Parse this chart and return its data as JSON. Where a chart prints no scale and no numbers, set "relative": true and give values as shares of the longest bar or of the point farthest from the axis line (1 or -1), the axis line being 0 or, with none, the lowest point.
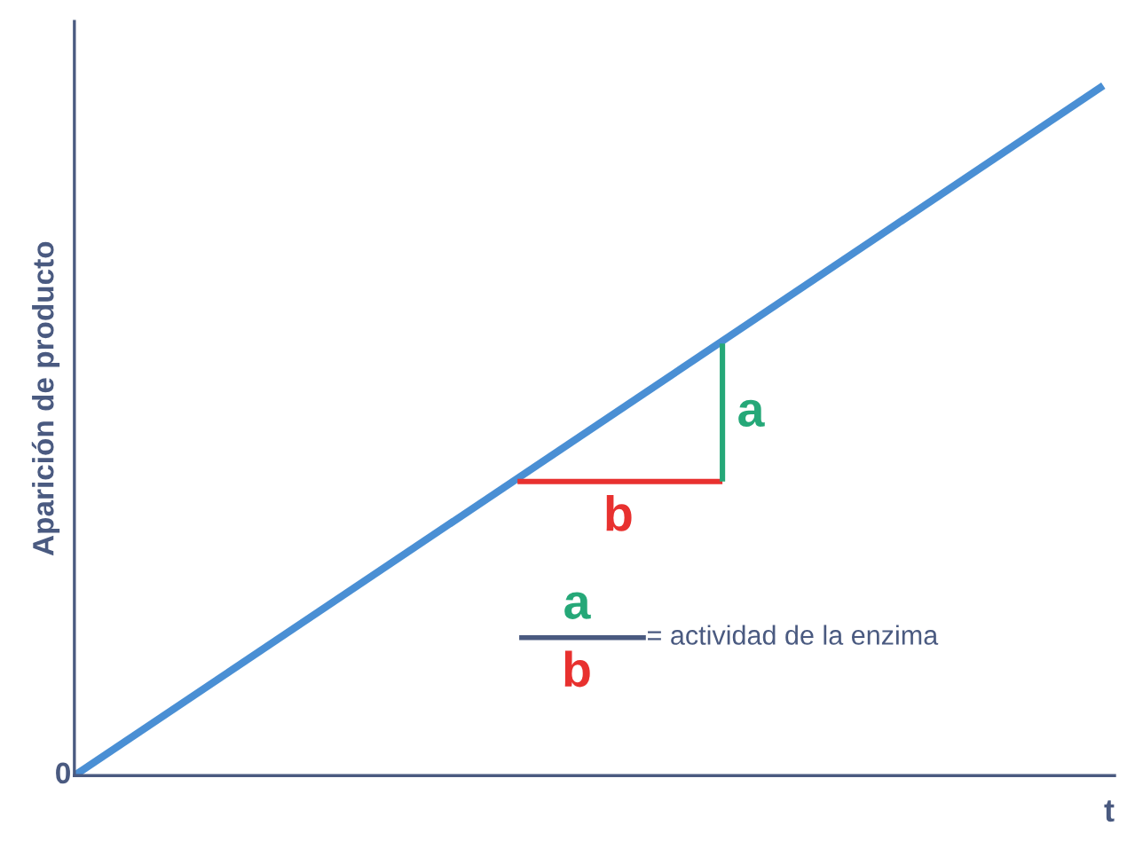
{
  "chart_data": {
    "type": "line",
    "relative": true,
    "xlabel": "t",
    "ylabel": "Aparición de producto",
    "categories": [
      null,
      null
    ],
    "series": [
      {
        "color": "#4a8fd4",
        "values": [
          0,
          1
        ]
      }
    ],
    "annotations": [
      "a",
      "b",
      "0",
      "a",
      "b",
      "= actividad de la enzima"
    ],
    "legend": false,
    "marker": "none",
    "line_style": "solid"
  }
}
